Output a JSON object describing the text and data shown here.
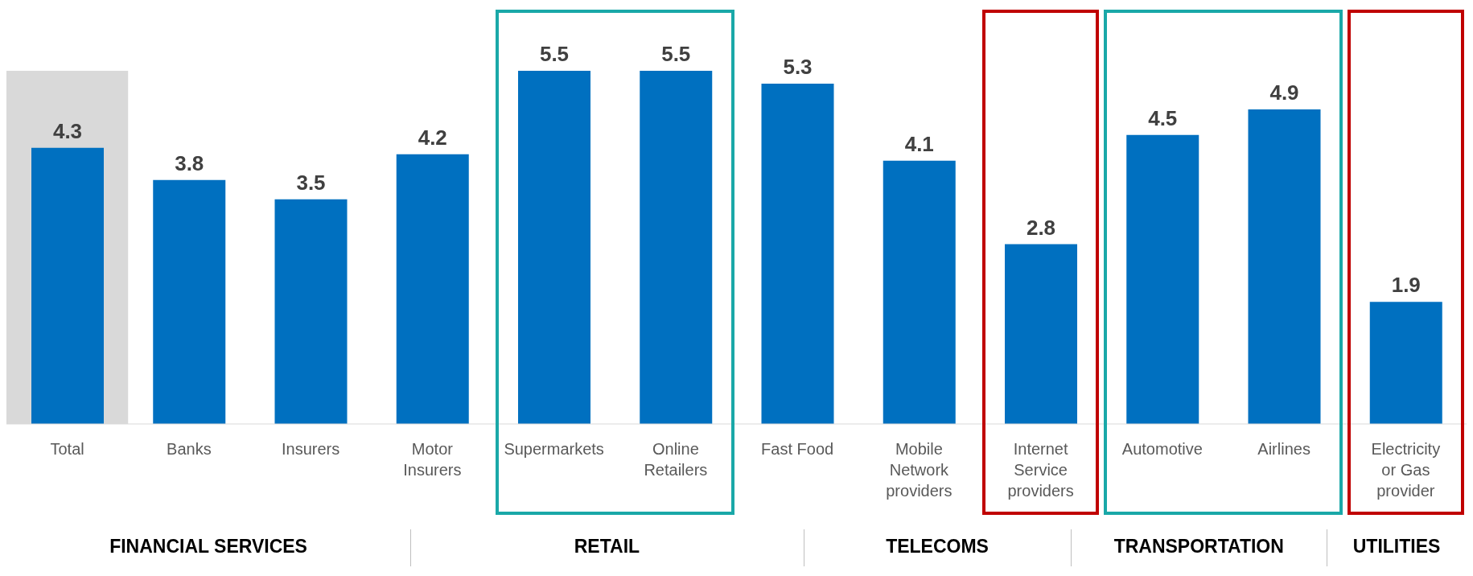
{
  "chart_data": {
    "type": "bar",
    "categories": [
      "Total",
      "Banks",
      "Insurers",
      "Motor Insurers",
      "Supermarkets",
      "Online Retailers",
      "Fast Food",
      "Mobile Network providers",
      "Internet Service providers",
      "Automotive",
      "Airlines",
      "Electricity or Gas provider"
    ],
    "values": [
      4.3,
      3.8,
      3.5,
      4.2,
      5.5,
      5.5,
      5.3,
      4.1,
      2.8,
      4.5,
      4.9,
      1.9
    ],
    "color": "#0070c0",
    "data_labels": true,
    "bands": [
      {
        "axis": "x",
        "from": "Total",
        "to": "Total",
        "color": "#d9d9d9"
      }
    ],
    "annotations": [
      "FINANCIAL SERVICES",
      "RETAIL",
      "TELECOMS",
      "TRANSPORTATION",
      "UTILITIES"
    ]
  }
}
